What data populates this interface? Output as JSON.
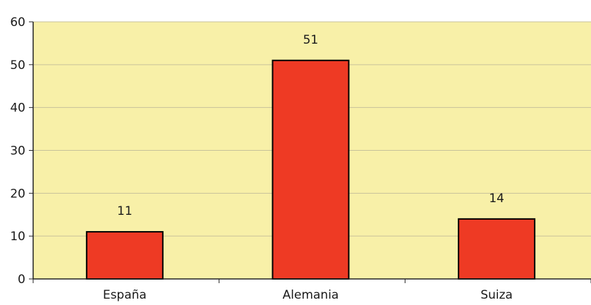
{
  "chart_data": {
    "type": "bar",
    "title": "",
    "xlabel": "",
    "ylabel": "",
    "categories": [
      "España",
      "Alemania",
      "Suiza"
    ],
    "values": [
      11,
      51,
      14
    ],
    "data_labels": [
      "11",
      "51",
      "14"
    ],
    "ylim": [
      0,
      60
    ],
    "yticks": [
      0,
      10,
      20,
      30,
      40,
      50,
      60
    ],
    "ytick_labels": [
      "0",
      "10",
      "20",
      "30",
      "40",
      "50",
      "60"
    ],
    "grid": true,
    "legend": "none",
    "colors": {
      "plot_background": "#f8f0a8",
      "bar_fill": "#ee3a24",
      "bar_stroke": "#000000",
      "grid": "#c7c19a",
      "axis": "#222222"
    }
  }
}
